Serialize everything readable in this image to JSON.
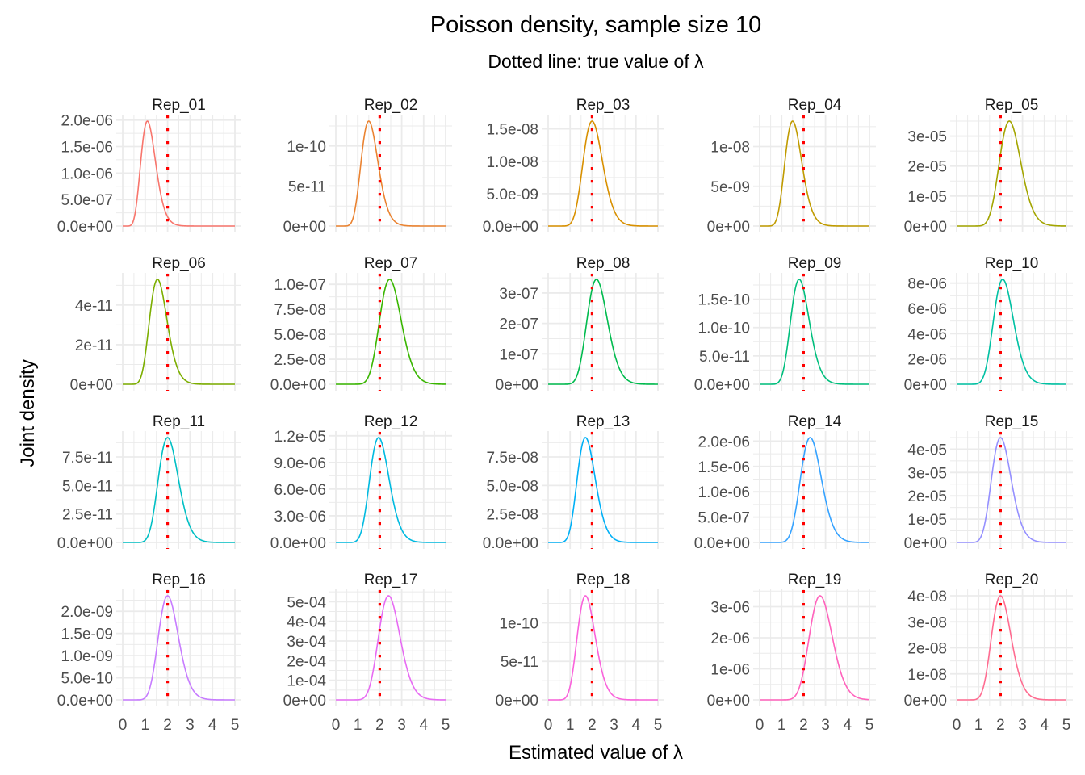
{
  "chart_data": {
    "type": "line",
    "title": "Poisson density, sample size 10",
    "subtitle": "Dotted line: true value of λ",
    "xlabel": "Estimated value of λ",
    "ylabel": "Joint density",
    "xlim": [
      0,
      5
    ],
    "x_ticks": [
      "0",
      "1",
      "2",
      "3",
      "4",
      "5"
    ],
    "true_lambda": 2,
    "true_lambda_line_color": "#ff0000",
    "grid": true,
    "legend": "none",
    "facet_layout": {
      "columns": 5,
      "rows": 4
    },
    "panels": [
      {
        "label": "Rep_01",
        "color": "#F8766D",
        "mle": 1.1,
        "peak": 1.98e-06,
        "y_ticks": [
          "0.0e+00",
          "5.0e-07",
          "1.0e-06",
          "1.5e-06",
          "2.0e-06"
        ],
        "y_tick_values": [
          0,
          5e-07,
          1e-06,
          1.5e-06,
          2e-06
        ]
      },
      {
        "label": "Rep_02",
        "color": "#EA8331",
        "mle": 1.5,
        "peak": 1.31e-10,
        "y_ticks": [
          "0e+00",
          "5e-11",
          "1e-10"
        ],
        "y_tick_values": [
          0,
          5e-11,
          1e-10
        ]
      },
      {
        "label": "Rep_03",
        "color": "#D89000",
        "mle": 2.0,
        "peak": 1.62e-08,
        "y_ticks": [
          "0.0e+00",
          "5.0e-09",
          "1.0e-08",
          "1.5e-08"
        ],
        "y_tick_values": [
          0,
          5e-09,
          1e-08,
          1.5e-08
        ]
      },
      {
        "label": "Rep_04",
        "color": "#C09B00",
        "mle": 1.5,
        "peak": 1.32e-08,
        "y_ticks": [
          "0e+00",
          "5e-09",
          "1e-08"
        ],
        "y_tick_values": [
          0,
          5e-09,
          1e-08
        ]
      },
      {
        "label": "Rep_05",
        "color": "#A3A500",
        "mle": 2.4,
        "peak": 3.5e-05,
        "y_ticks": [
          "0e+00",
          "1e-05",
          "2e-05",
          "3e-05"
        ],
        "y_tick_values": [
          0,
          1e-05,
          2e-05,
          3e-05
        ]
      },
      {
        "label": "Rep_06",
        "color": "#7CAE00",
        "mle": 1.55,
        "peak": 5.3e-11,
        "y_ticks": [
          "0e+00",
          "2e-11",
          "4e-11"
        ],
        "y_tick_values": [
          0,
          2e-11,
          4e-11
        ]
      },
      {
        "label": "Rep_07",
        "color": "#39B600",
        "mle": 2.45,
        "peak": 1.05e-07,
        "y_ticks": [
          "0.0e+00",
          "2.5e-08",
          "5.0e-08",
          "7.5e-08",
          "1.0e-07"
        ],
        "y_tick_values": [
          0,
          2.5e-08,
          5e-08,
          7.5e-08,
          1e-07
        ]
      },
      {
        "label": "Rep_08",
        "color": "#00BB4E",
        "mle": 2.2,
        "peak": 3.45e-07,
        "y_ticks": [
          "0e+00",
          "1e-07",
          "2e-07",
          "3e-07"
        ],
        "y_tick_values": [
          0,
          1e-07,
          2e-07,
          3e-07
        ]
      },
      {
        "label": "Rep_09",
        "color": "#00BF7D",
        "mle": 1.8,
        "peak": 1.85e-10,
        "y_ticks": [
          "0.0e+00",
          "5.0e-11",
          "1.0e-10",
          "1.5e-10"
        ],
        "y_tick_values": [
          0,
          5e-11,
          1e-10,
          1.5e-10
        ]
      },
      {
        "label": "Rep_10",
        "color": "#00C1A3",
        "mle": 2.1,
        "peak": 8.3e-06,
        "y_ticks": [
          "0e+00",
          "2e-06",
          "4e-06",
          "6e-06",
          "8e-06"
        ],
        "y_tick_values": [
          0,
          2e-06,
          4e-06,
          6e-06,
          8e-06
        ]
      },
      {
        "label": "Rep_11",
        "color": "#00BFC4",
        "mle": 2.0,
        "peak": 9.2e-11,
        "y_ticks": [
          "0.0e+00",
          "2.5e-11",
          "5.0e-11",
          "7.5e-11"
        ],
        "y_tick_values": [
          0,
          2.5e-11,
          5e-11,
          7.5e-11
        ]
      },
      {
        "label": "Rep_12",
        "color": "#00BAE0",
        "mle": 1.95,
        "peak": 1.18e-05,
        "y_ticks": [
          "0.0e+00",
          "3.0e-06",
          "6.0e-06",
          "9.0e-06",
          "1.2e-05"
        ],
        "y_tick_values": [
          0,
          3e-06,
          6e-06,
          9e-06,
          1.2e-05
        ]
      },
      {
        "label": "Rep_13",
        "color": "#00B0F6",
        "mle": 1.7,
        "peak": 9.2e-08,
        "y_ticks": [
          "0.0e+00",
          "2.5e-08",
          "5.0e-08",
          "7.5e-08"
        ],
        "y_tick_values": [
          0,
          2.5e-08,
          5e-08,
          7.5e-08
        ]
      },
      {
        "label": "Rep_14",
        "color": "#35A2FF",
        "mle": 2.3,
        "peak": 2.07e-06,
        "y_ticks": [
          "0.0e+00",
          "5.0e-07",
          "1.0e-06",
          "1.5e-06",
          "2.0e-06"
        ],
        "y_tick_values": [
          0,
          5e-07,
          1e-06,
          1.5e-06,
          2e-06
        ]
      },
      {
        "label": "Rep_15",
        "color": "#9590FF",
        "mle": 2.0,
        "peak": 4.5e-05,
        "y_ticks": [
          "0e+00",
          "1e-05",
          "2e-05",
          "3e-05",
          "4e-05"
        ],
        "y_tick_values": [
          0,
          1e-05,
          2e-05,
          3e-05,
          4e-05
        ]
      },
      {
        "label": "Rep_16",
        "color": "#C77CFF",
        "mle": 2.0,
        "peak": 2.35e-09,
        "y_ticks": [
          "0.0e+00",
          "5.0e-10",
          "1.0e-09",
          "1.5e-09",
          "2.0e-09"
        ],
        "y_tick_values": [
          0,
          5e-10,
          1e-09,
          1.5e-09,
          2e-09
        ]
      },
      {
        "label": "Rep_17",
        "color": "#E76BF3",
        "mle": 2.4,
        "peak": 0.00053,
        "y_ticks": [
          "0e+00",
          "1e-04",
          "2e-04",
          "3e-04",
          "4e-04",
          "5e-04"
        ],
        "y_tick_values": [
          0,
          0.0001,
          0.0002,
          0.0003,
          0.0004,
          0.0005
        ]
      },
      {
        "label": "Rep_18",
        "color": "#FA62DB",
        "mle": 1.7,
        "peak": 1.35e-10,
        "y_ticks": [
          "0e+00",
          "5e-11",
          "1e-10"
        ],
        "y_tick_values": [
          0,
          5e-11,
          1e-10
        ]
      },
      {
        "label": "Rep_19",
        "color": "#FF62BC",
        "mle": 2.75,
        "peak": 3.35e-06,
        "y_ticks": [
          "0e+00",
          "1e-06",
          "2e-06",
          "3e-06"
        ],
        "y_tick_values": [
          0,
          1e-06,
          2e-06,
          3e-06
        ]
      },
      {
        "label": "Rep_20",
        "color": "#FF6C91",
        "mle": 2.0,
        "peak": 4e-08,
        "y_ticks": [
          "0e+00",
          "1e-08",
          "2e-08",
          "3e-08",
          "4e-08"
        ],
        "y_tick_values": [
          0,
          1e-08,
          2e-08,
          3e-08,
          4e-08
        ]
      }
    ]
  }
}
